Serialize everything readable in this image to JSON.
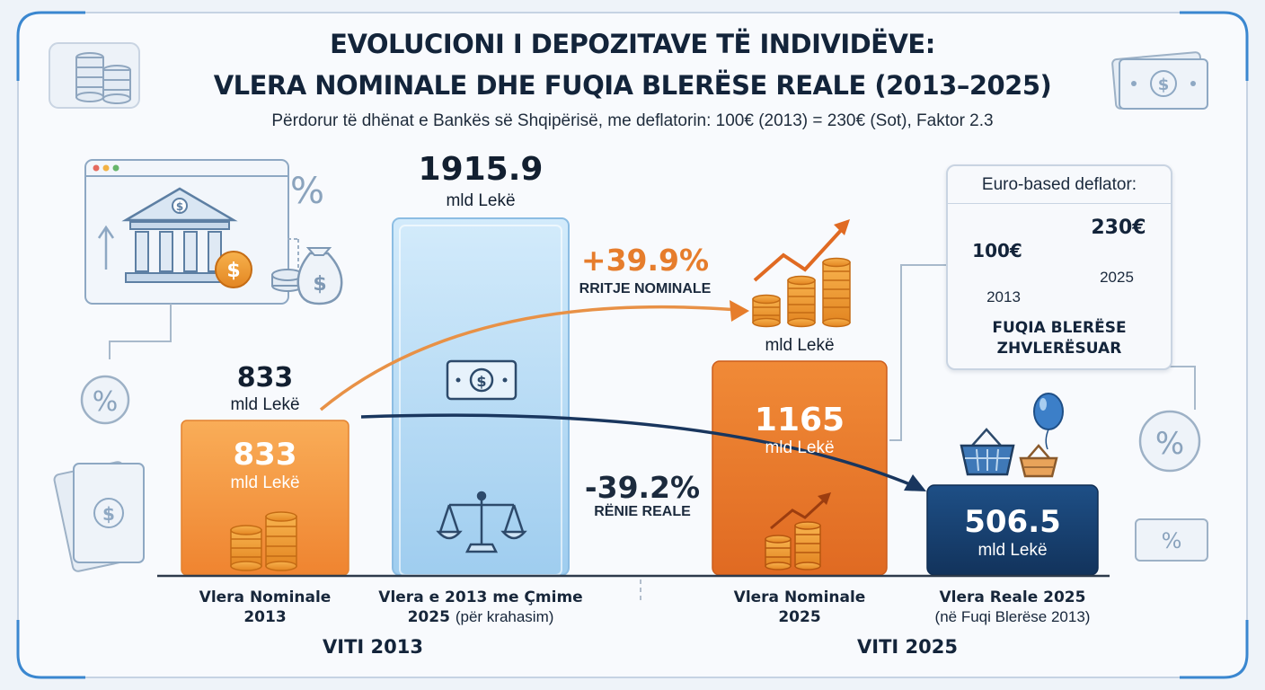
{
  "title_line1": "EVOLUCIONI I DEPOZITAVE TË INDIVIDËVE:",
  "title_line2": "VLERA NOMINALE DHE FUQIA BLERËSE REALE (2013–2025)",
  "subtitle": "Përdorur të dhënat e Bankës së Shqipërisë, me deflatorin: 100€ (2013) = 230€ (Sot), Faktor 2.3",
  "unit": "mld Lekë",
  "chart_data": {
    "type": "bar",
    "categories": [
      "Vlera Nominale 2013",
      "Vlera e 2013 me Çmime 2025 (për krahasim)",
      "Vlera Nominale 2025",
      "Vlera Reale 2025 (në Fuqi Blerëse 2013)"
    ],
    "values": [
      833,
      1915.9,
      1165,
      506.5
    ],
    "value_labels": [
      "833",
      "1915.9",
      "1165",
      "506.5"
    ],
    "groups": [
      "VITI 2013",
      "VITI 2025"
    ],
    "bar_colors": [
      "#f4933a",
      "#a9d3f1",
      "#e9782b",
      "#173f6e"
    ]
  },
  "labels": {
    "bar1_outside_value": "833",
    "bar1_line1": "Vlera Nominale",
    "bar1_line2": "2013",
    "bar2_line1": "Vlera e 2013 me Çmime",
    "bar2_line2a": "2025",
    "bar2_line2b": "(për krahasim)",
    "bar3_line1": "Vlera Nominale",
    "bar3_line2": "2025",
    "bar4_line1": "Vlera Reale 2025",
    "bar4_line2": "(në Fuqi Blerëse 2013)",
    "group1": "VITI 2013",
    "group2": "VITI 2025"
  },
  "annotations": {
    "nominal_pct": "+39.9%",
    "nominal_text": "RRITJE NOMINALE",
    "real_pct": "-39.2%",
    "real_text": "RËNIE REALE"
  },
  "deflator_panel": {
    "heading": "Euro-based deflator:",
    "left_value": "100€",
    "right_value": "230€",
    "left_year": "2013",
    "right_year": "2025",
    "caption_line1": "FUQIA BLERËSE",
    "caption_line2": "ZHVLERËSUAR"
  },
  "icons": [
    "bank-icon",
    "coin-stack-icon",
    "money-bag-icon",
    "percent-icon",
    "banknote-icon",
    "scale-icon",
    "trend-up-icon",
    "basket-icon",
    "balloon-icon"
  ],
  "colors": {
    "orange": "#f4933a",
    "dark_orange": "#e9782b",
    "light_blue": "#a9d3f1",
    "navy": "#173f6e",
    "text": "#1b2a3d"
  }
}
